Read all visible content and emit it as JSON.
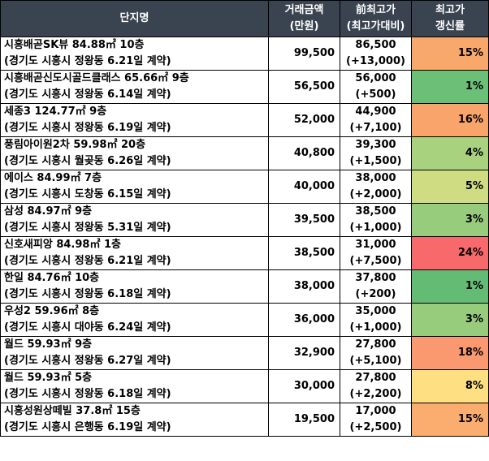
{
  "headers": {
    "name": "단지명",
    "price_line1": "거래금액",
    "price_line2": "(만원)",
    "max_line1": "前최고가",
    "max_line2": "(최고가대비)",
    "rate_line1": "최고가",
    "rate_line2": "갱신률"
  },
  "rows": [
    {
      "name": "시흥배곧SK뷰 84.88㎡ 10층",
      "location": "(경기도 시흥시 정왕동 6.21일 계약)",
      "price": "99,500",
      "prev_max": "86,500",
      "diff": "(+13,000)",
      "rate": "15%",
      "color": "#f9a86c"
    },
    {
      "name": "시흥배곧신도시골드클래스 65.66㎡ 9층",
      "location": "(경기도 시흥시 정왕동 6.14일 계약)",
      "price": "56,500",
      "prev_max": "56,000",
      "diff": "(+500)",
      "rate": "1%",
      "color": "#6bbf76"
    },
    {
      "name": "세종3 124.77㎡ 9층",
      "location": "(경기도 시흥시 정왕동 6.19일 계약)",
      "price": "52,000",
      "prev_max": "44,900",
      "diff": "(+7,100)",
      "rate": "16%",
      "color": "#f9a46b"
    },
    {
      "name": "풍림아이원2차 59.98㎡ 20층",
      "location": "(경기도 시흥시 월곶동 6.26일 계약)",
      "price": "40,800",
      "prev_max": "39,300",
      "diff": "(+1,500)",
      "rate": "4%",
      "color": "#a9d27f"
    },
    {
      "name": "에이스 84.99㎡ 7층",
      "location": "(경기도 시흥시 도창동 6.15일 계약)",
      "price": "40,000",
      "prev_max": "38,000",
      "diff": "(+2,000)",
      "rate": "5%",
      "color": "#cfdc82"
    },
    {
      "name": "삼성 84.97㎡ 9층",
      "location": "(경기도 시흥시 정왕동 5.31일 계약)",
      "price": "39,500",
      "prev_max": "38,500",
      "diff": "(+1,000)",
      "rate": "3%",
      "color": "#98cc7d"
    },
    {
      "name": "신호새피앙 84.98㎡ 1층",
      "location": "(경기도 시흥시 정왕동 6.21일 계약)",
      "price": "38,500",
      "prev_max": "31,000",
      "diff": "(+7,500)",
      "rate": "24%",
      "color": "#f8696b"
    },
    {
      "name": "한일 84.76㎡ 10층",
      "location": "(경기도 시흥시 정왕동 6.18일 계약)",
      "price": "38,000",
      "prev_max": "37,800",
      "diff": "(+200)",
      "rate": "1%",
      "color": "#64bc74"
    },
    {
      "name": "우성2 59.96㎡ 8층",
      "location": "(경기도 시흥시 대야동 6.24일 계약)",
      "price": "36,000",
      "prev_max": "35,000",
      "diff": "(+1,000)",
      "rate": "3%",
      "color": "#98cc7d"
    },
    {
      "name": "월드 59.93㎡ 9층",
      "location": "(경기도 시흥시 정왕동 6.27일 계약)",
      "price": "32,900",
      "prev_max": "27,800",
      "diff": "(+5,100)",
      "rate": "18%",
      "color": "#fa9970"
    },
    {
      "name": "월드 59.93㎡ 5층",
      "location": "(경기도 시흥시 정왕동 6.18일 계약)",
      "price": "30,000",
      "prev_max": "27,800",
      "diff": "(+2,200)",
      "rate": "8%",
      "color": "#fee082"
    },
    {
      "name": "시흥성원상떼빌 37.8㎡ 15층",
      "location": "(경기도 시흥시 은행동 6.19일 계약)",
      "price": "19,500",
      "prev_max": "17,000",
      "diff": "(+2,500)",
      "rate": "15%",
      "color": "#fbad6f"
    }
  ]
}
